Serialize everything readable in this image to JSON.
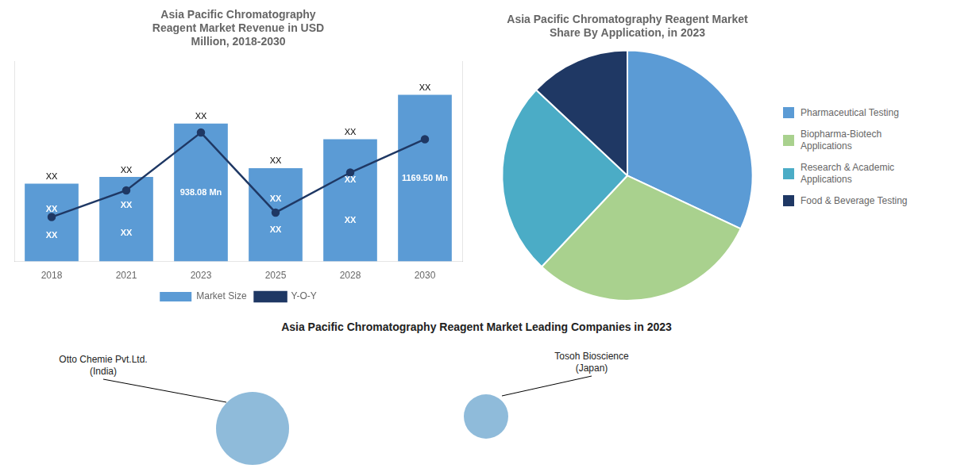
{
  "chart_data": [
    {
      "type": "bar",
      "title": "Asia Pacific Chromatography\nReagent Market Revenue in USD\nMillion, 2018-2030",
      "categories": [
        "2018",
        "2021",
        "2023",
        "2025",
        "2028",
        "2030"
      ],
      "series": [
        {
          "name": "Market Size",
          "type": "bar",
          "color": "#5B9BD5",
          "values": [
            3.5,
            3.8,
            6.2,
            4.2,
            5.5,
            7.5
          ]
        },
        {
          "name": "Y-O-Y",
          "type": "line",
          "color": "#1F3864",
          "marker": "circle",
          "axis": "y2",
          "values": [
            2.0,
            3.2,
            5.8,
            2.2,
            4.0,
            5.5
          ]
        }
      ],
      "ylim": [
        0,
        9
      ],
      "yticks": [],
      "y2lim": [
        0,
        9
      ],
      "y2ticks": [],
      "grid": false,
      "tick_labels": "x",
      "legend": "bottom",
      "annotations": [
        {
          "category": "2018",
          "text": "XX\nXX",
          "position": "inside"
        },
        {
          "category": "2021",
          "text": "XX\nXX",
          "position": "inside"
        },
        {
          "category": "2023",
          "text": "938.08 Mn",
          "position": "inside"
        },
        {
          "category": "2025",
          "text": "XX\nXX",
          "position": "inside"
        },
        {
          "category": "2028",
          "text": "XX\nXX",
          "position": "inside"
        },
        {
          "category": "2030",
          "text": "1169.50 Mn",
          "position": "inside"
        },
        {
          "category": "2018",
          "text": "XX",
          "position": "above"
        },
        {
          "category": "2021",
          "text": "XX",
          "position": "above"
        },
        {
          "category": "2023",
          "text": "XX",
          "position": "above"
        },
        {
          "category": "2025",
          "text": "XX",
          "position": "above"
        },
        {
          "category": "2028",
          "text": "XX",
          "position": "above"
        },
        {
          "category": "2030",
          "text": "XX",
          "position": "above"
        }
      ]
    },
    {
      "type": "pie",
      "title": "Asia Pacific Chromatography Reagent Market\nShare By Application, in 2023",
      "categories": [
        "Pharmaceutical Testing",
        "Biopharma-Biotech\nApplications",
        "Research & Academic\nApplications",
        "Food & Beverage Testing"
      ],
      "values": [
        32,
        30,
        25,
        13
      ],
      "colors": [
        "#5B9BD5",
        "#A9D18E",
        "#4BACC6",
        "#1F3864"
      ],
      "legend": "right"
    },
    {
      "type": "text",
      "title": "Asia Pacific Chromatography Reagent Market Leading Companies in 2023",
      "annotations": [
        {
          "text": "Otto Chemie Pvt.Ltd.\n(India)"
        },
        {
          "text": "Tosoh Bioscience\n(Japan)"
        }
      ],
      "color": "#7BAFD4"
    }
  ]
}
